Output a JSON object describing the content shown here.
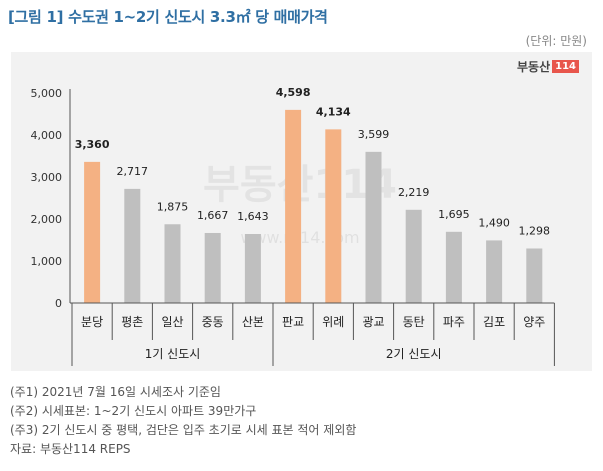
{
  "title": "[그림 1] 수도권 1~2기 신도시 3.3㎡ 당 매매가격",
  "unit_label": "(단위: 만원)",
  "logo": {
    "text": "부동산",
    "box": "114"
  },
  "watermark": {
    "brand": "부동산114",
    "url": "www.r114.com"
  },
  "colors": {
    "highlight": "#f4b183",
    "default": "#bfbfbf",
    "title": "#2f6fa3"
  },
  "chart_data": {
    "type": "bar",
    "categories": [
      "분당",
      "평촌",
      "일산",
      "중동",
      "산본",
      "판교",
      "위례",
      "광교",
      "동탄",
      "파주",
      "김포",
      "양주"
    ],
    "values": [
      3360,
      2717,
      1875,
      1667,
      1643,
      4598,
      4134,
      3599,
      2219,
      1695,
      1490,
      1298
    ],
    "value_labels": [
      "3,360",
      "2,717",
      "1,875",
      "1,667",
      "1,643",
      "4,598",
      "4,134",
      "3,599",
      "2,219",
      "1,695",
      "1,490",
      "1,298"
    ],
    "highlight": [
      true,
      false,
      false,
      false,
      false,
      true,
      true,
      false,
      false,
      false,
      false,
      false
    ],
    "groups": [
      {
        "label": "1기 신도시",
        "count": 5
      },
      {
        "label": "2기 신도시",
        "count": 7
      }
    ],
    "yticks": [
      "0",
      "1,000",
      "2,000",
      "3,000",
      "4,000",
      "5,000"
    ],
    "ylim": [
      0,
      5000
    ],
    "grid": false,
    "title": "",
    "xlabel": "",
    "ylabel": ""
  },
  "notes": [
    "(주1) 2021년 7월 16일 시세조사 기준임",
    "(주2) 시세표본: 1~2기 신도시 아파트 39만가구",
    "(주3) 2기 신도시 중 평택, 검단은 입주 초기로 시세 표본 적어 제외함",
    "자료: 부동산114 REPS"
  ]
}
